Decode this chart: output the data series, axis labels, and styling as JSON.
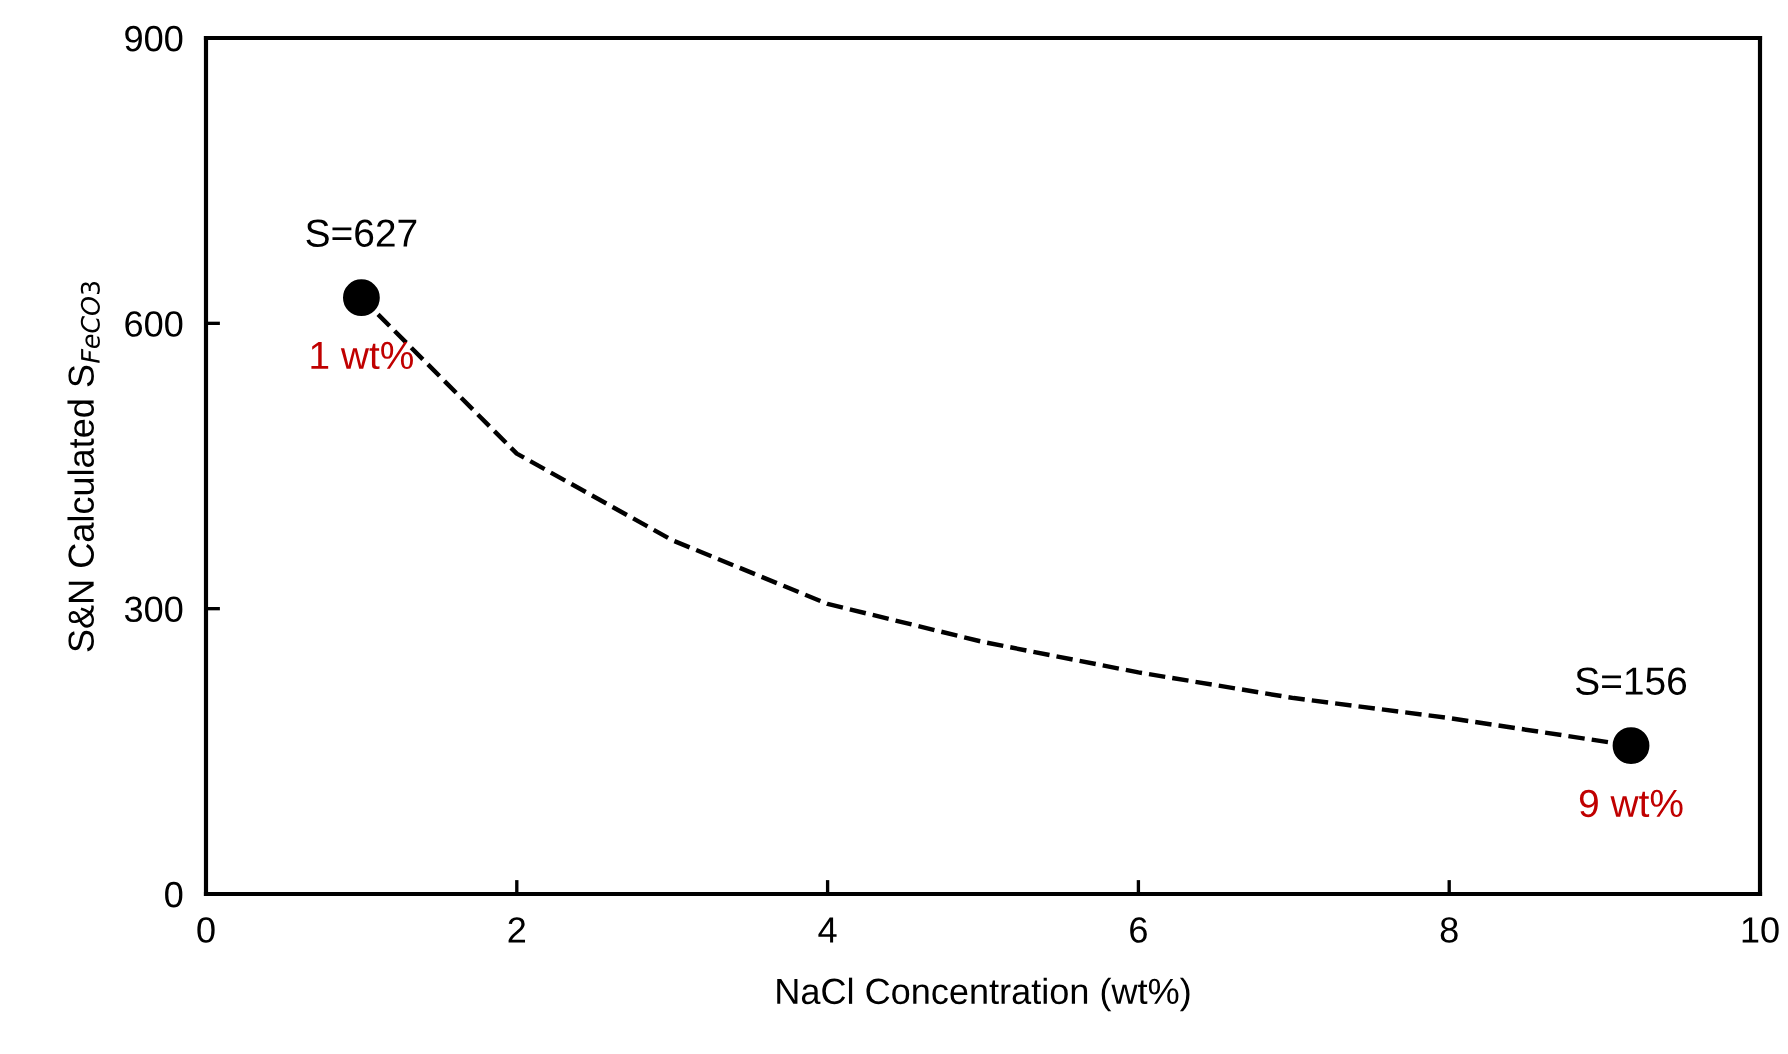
{
  "chart_data": {
    "type": "line",
    "xlabel": "NaCl Concentration (wt%)",
    "ylabel": "S&N Calculated S$_{FeCO3}$",
    "xlim": [
      0,
      10
    ],
    "xticks": [
      0,
      2,
      4,
      6,
      8,
      10
    ],
    "ylim": [
      0,
      900
    ],
    "yticks": [
      0,
      300,
      600,
      900
    ],
    "grid": false,
    "legend": false,
    "series": [
      {
        "color": "#000000",
        "line_style": "dashed",
        "marker": "none",
        "x": [
          1,
          2,
          3,
          4,
          5,
          6,
          7,
          8,
          9.17
        ],
        "values": [
          627,
          463,
          372,
          305,
          265,
          233,
          206,
          185,
          156
        ]
      },
      {
        "type": "scatter",
        "color": "#000000",
        "marker": "circle",
        "x": [
          1,
          9.17
        ],
        "values": [
          627,
          156
        ]
      }
    ],
    "annotations": [
      "S=627",
      "1 wt%",
      "S=156",
      "9 wt%"
    ]
  }
}
